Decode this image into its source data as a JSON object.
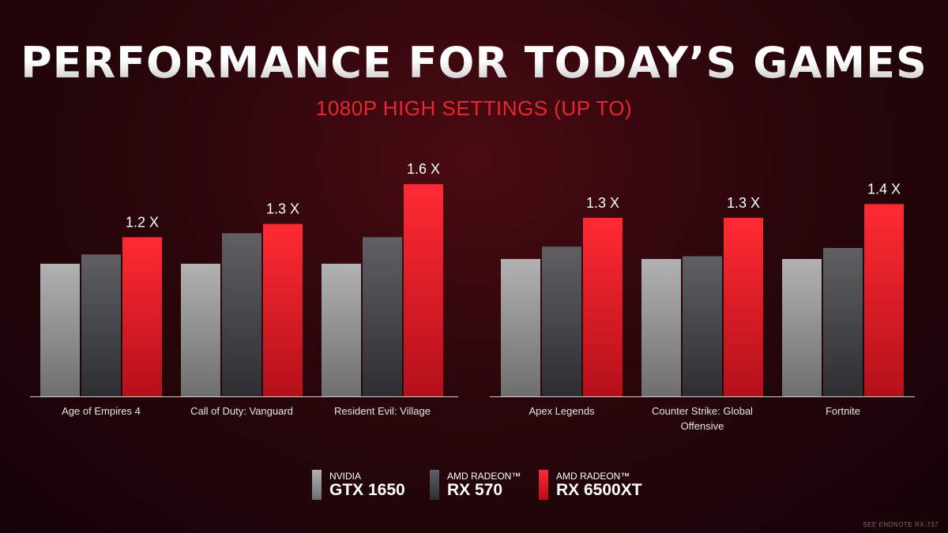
{
  "title": "PERFORMANCE FOR TODAY’S GAMES",
  "subtitle": "1080P HIGH SETTINGS (UP TO)",
  "colors": {
    "gtx1650": "#a8a8a8",
    "rx570": "#5a5a5e",
    "rx6500xt": "#ef2630",
    "subtitle": "#e8282e"
  },
  "legend": [
    {
      "brand": "NVIDIA",
      "model": "GTX 1650"
    },
    {
      "brand": "AMD RADEON™",
      "model": "RX 570"
    },
    {
      "brand": "AMD RADEON™",
      "model": "RX 6500XT"
    }
  ],
  "footnote": "SEE ENDNOTE RX-737",
  "chart_data": [
    {
      "type": "bar",
      "categories": [
        "Age of Empires 4",
        "Call of Duty: Vanguard",
        "Resident Evil: Village"
      ],
      "series": [
        {
          "name": "GTX 1650",
          "values": [
            1.0,
            1.0,
            1.0
          ]
        },
        {
          "name": "RX 570",
          "values": [
            1.07,
            1.23,
            1.2
          ]
        },
        {
          "name": "RX 6500XT",
          "values": [
            1.2,
            1.3,
            1.6
          ]
        }
      ],
      "data_labels": [
        "1.2 X",
        "1.3 X",
        "1.6 X"
      ],
      "ylim": [
        0,
        1.7
      ]
    },
    {
      "type": "bar",
      "categories": [
        "Apex Legends",
        "Counter Strike: Global Offensive",
        "Fortnite"
      ],
      "series": [
        {
          "name": "GTX 1650",
          "values": [
            1.0,
            1.0,
            1.0
          ]
        },
        {
          "name": "RX 570",
          "values": [
            1.09,
            1.02,
            1.08
          ]
        },
        {
          "name": "RX 6500XT",
          "values": [
            1.3,
            1.3,
            1.4
          ]
        }
      ],
      "data_labels": [
        "1.3 X",
        "1.3 X",
        "1.4 X"
      ],
      "ylim": [
        0,
        1.65
      ]
    }
  ]
}
